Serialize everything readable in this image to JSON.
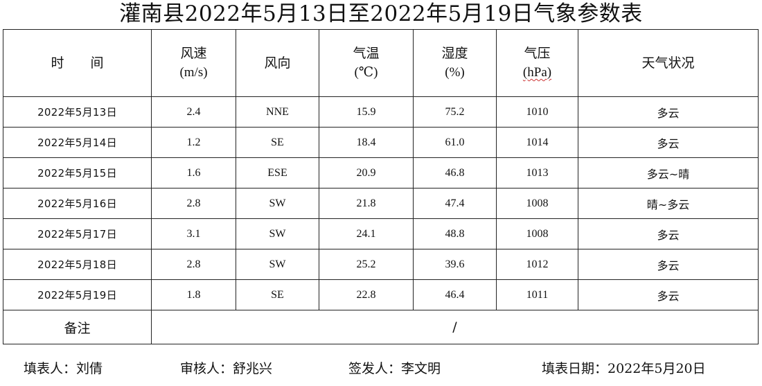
{
  "title": "灌南县2022年5月13日至2022年5月19日气象参数表",
  "headers": {
    "time": "时　　间",
    "wind_speed": "风速",
    "wind_speed_unit": "(m/s)",
    "wind_dir": "风向",
    "temp": "气温",
    "temp_unit": "(℃)",
    "humidity": "湿度",
    "humidity_unit": "(%)",
    "pressure": "气压",
    "pressure_unit": "(hPa)",
    "weather": "天气状况"
  },
  "rows": [
    {
      "date": "2022年5月13日",
      "speed": "2.4",
      "dir": "NNE",
      "temp": "15.9",
      "hum": "75.2",
      "pres": "1010",
      "cond": "多云"
    },
    {
      "date": "2022年5月14日",
      "speed": "1.2",
      "dir": "SE",
      "temp": "18.4",
      "hum": "61.0",
      "pres": "1014",
      "cond": "多云"
    },
    {
      "date": "2022年5月15日",
      "speed": "1.6",
      "dir": "ESE",
      "temp": "20.9",
      "hum": "46.8",
      "pres": "1013",
      "cond": "多云~晴"
    },
    {
      "date": "2022年5月16日",
      "speed": "2.8",
      "dir": "SW",
      "temp": "21.8",
      "hum": "47.4",
      "pres": "1008",
      "cond": "晴~多云"
    },
    {
      "date": "2022年5月17日",
      "speed": "3.1",
      "dir": "SW",
      "temp": "24.1",
      "hum": "48.8",
      "pres": "1008",
      "cond": "多云"
    },
    {
      "date": "2022年5月18日",
      "speed": "2.8",
      "dir": "SW",
      "temp": "25.2",
      "hum": "39.6",
      "pres": "1012",
      "cond": "多云"
    },
    {
      "date": "2022年5月19日",
      "speed": "1.8",
      "dir": "SE",
      "temp": "22.8",
      "hum": "46.4",
      "pres": "1011",
      "cond": "多云"
    }
  ],
  "remarks": {
    "label": "备注",
    "value": "/"
  },
  "footer": {
    "filler": "填表人：刘倩",
    "reviewer": "审核人：舒兆兴",
    "issuer": "签发人：李文明",
    "fill_date": "填表日期：2022年5月20日"
  }
}
